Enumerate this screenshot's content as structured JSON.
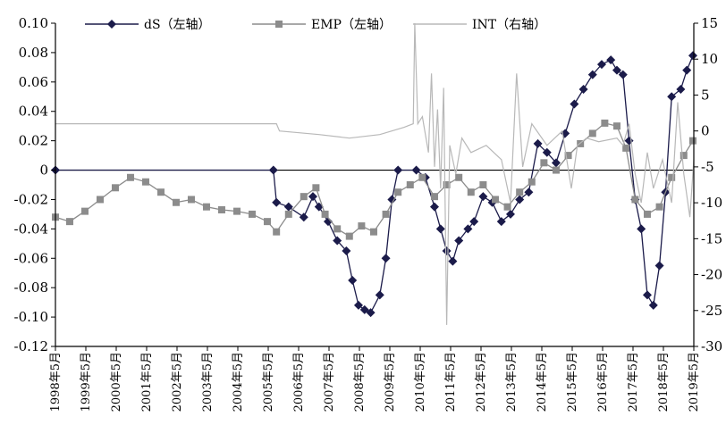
{
  "chart_data": {
    "type": "line",
    "title": "",
    "xlabel": "",
    "ylabel_left": "",
    "ylabel_right": "",
    "x_range": [
      1998.33,
      2019.33
    ],
    "left_axis": {
      "min": -0.12,
      "max": 0.1,
      "ticks": [
        0.1,
        0.08,
        0.06,
        0.04,
        0.02,
        0,
        -0.02,
        -0.04,
        -0.06,
        -0.08,
        -0.1,
        -0.12
      ],
      "tick_labels": [
        "0.10",
        "0.08",
        "0.06",
        "0.04",
        "0.02",
        "0",
        "-0.02",
        "-0.04",
        "-0.06",
        "-0.08",
        "-0.10",
        "-0.12"
      ]
    },
    "right_axis": {
      "min": -30,
      "max": 15,
      "ticks": [
        15,
        10,
        5,
        0,
        -5,
        -10,
        -15,
        -20,
        -25,
        -30
      ],
      "tick_labels": [
        "15",
        "10",
        "5",
        "0",
        "-5",
        "-10",
        "-15",
        "-20",
        "-25",
        "-30"
      ]
    },
    "x_tick_labels": [
      "1998年5月",
      "1999年5月",
      "2000年5月",
      "2001年5月",
      "2002年5月",
      "2003年5月",
      "2004年5月",
      "2005年5月",
      "2006年5月",
      "2007年5月",
      "2008年5月",
      "2009年5月",
      "2010年5月",
      "2011年5月",
      "2012年5月",
      "2013年5月",
      "2014年5月",
      "2015年5月",
      "2016年5月",
      "2017年5月",
      "2018年5月",
      "2019年5月"
    ],
    "legend_position": "top",
    "series": [
      {
        "name": "dS（左轴）",
        "axis": "left",
        "color": "#1b1b4a",
        "marker": "diamond",
        "points": [
          [
            1998.33,
            0
          ],
          [
            2005.5,
            0
          ],
          [
            2005.6,
            -0.022
          ],
          [
            2006.0,
            -0.025
          ],
          [
            2006.5,
            -0.032
          ],
          [
            2006.8,
            -0.018
          ],
          [
            2007.0,
            -0.025
          ],
          [
            2007.3,
            -0.035
          ],
          [
            2007.6,
            -0.048
          ],
          [
            2007.9,
            -0.055
          ],
          [
            2008.1,
            -0.075
          ],
          [
            2008.3,
            -0.092
          ],
          [
            2008.5,
            -0.095
          ],
          [
            2008.7,
            -0.097
          ],
          [
            2009.0,
            -0.085
          ],
          [
            2009.2,
            -0.06
          ],
          [
            2009.4,
            -0.02
          ],
          [
            2009.6,
            0
          ],
          [
            2010.2,
            0
          ],
          [
            2010.5,
            -0.005
          ],
          [
            2010.8,
            -0.025
          ],
          [
            2011.0,
            -0.04
          ],
          [
            2011.2,
            -0.055
          ],
          [
            2011.4,
            -0.062
          ],
          [
            2011.6,
            -0.048
          ],
          [
            2011.9,
            -0.04
          ],
          [
            2012.1,
            -0.035
          ],
          [
            2012.4,
            -0.018
          ],
          [
            2012.7,
            -0.022
          ],
          [
            2013.0,
            -0.035
          ],
          [
            2013.3,
            -0.03
          ],
          [
            2013.6,
            -0.02
          ],
          [
            2013.9,
            -0.015
          ],
          [
            2014.2,
            0.018
          ],
          [
            2014.5,
            0.012
          ],
          [
            2014.8,
            0.005
          ],
          [
            2015.1,
            0.025
          ],
          [
            2015.4,
            0.045
          ],
          [
            2015.7,
            0.055
          ],
          [
            2016.0,
            0.065
          ],
          [
            2016.3,
            0.072
          ],
          [
            2016.6,
            0.075
          ],
          [
            2016.8,
            0.068
          ],
          [
            2017.0,
            0.065
          ],
          [
            2017.2,
            0.02
          ],
          [
            2017.4,
            -0.02
          ],
          [
            2017.6,
            -0.04
          ],
          [
            2017.8,
            -0.085
          ],
          [
            2018.0,
            -0.092
          ],
          [
            2018.2,
            -0.065
          ],
          [
            2018.4,
            -0.015
          ],
          [
            2018.6,
            0.05
          ],
          [
            2018.9,
            0.055
          ],
          [
            2019.1,
            0.068
          ],
          [
            2019.3,
            0.078
          ]
        ]
      },
      {
        "name": "EMP（左轴）",
        "axis": "left",
        "color": "#8c8c8c",
        "marker": "square",
        "points": [
          [
            1998.33,
            -0.032
          ],
          [
            1998.8,
            -0.035
          ],
          [
            1999.3,
            -0.028
          ],
          [
            1999.8,
            -0.02
          ],
          [
            2000.3,
            -0.012
          ],
          [
            2000.8,
            -0.005
          ],
          [
            2001.3,
            -0.008
          ],
          [
            2001.8,
            -0.015
          ],
          [
            2002.3,
            -0.022
          ],
          [
            2002.8,
            -0.02
          ],
          [
            2003.3,
            -0.025
          ],
          [
            2003.8,
            -0.027
          ],
          [
            2004.3,
            -0.028
          ],
          [
            2004.8,
            -0.03
          ],
          [
            2005.3,
            -0.035
          ],
          [
            2005.6,
            -0.042
          ],
          [
            2006.0,
            -0.03
          ],
          [
            2006.5,
            -0.018
          ],
          [
            2006.9,
            -0.012
          ],
          [
            2007.2,
            -0.03
          ],
          [
            2007.6,
            -0.04
          ],
          [
            2008.0,
            -0.045
          ],
          [
            2008.4,
            -0.038
          ],
          [
            2008.8,
            -0.042
          ],
          [
            2009.2,
            -0.03
          ],
          [
            2009.6,
            -0.015
          ],
          [
            2010.0,
            -0.01
          ],
          [
            2010.4,
            -0.005
          ],
          [
            2010.8,
            -0.018
          ],
          [
            2011.2,
            -0.01
          ],
          [
            2011.6,
            -0.005
          ],
          [
            2012.0,
            -0.015
          ],
          [
            2012.4,
            -0.01
          ],
          [
            2012.8,
            -0.02
          ],
          [
            2013.2,
            -0.025
          ],
          [
            2013.6,
            -0.015
          ],
          [
            2014.0,
            -0.008
          ],
          [
            2014.4,
            0.005
          ],
          [
            2014.8,
            0
          ],
          [
            2015.2,
            0.01
          ],
          [
            2015.6,
            0.018
          ],
          [
            2016.0,
            0.025
          ],
          [
            2016.4,
            0.032
          ],
          [
            2016.8,
            0.03
          ],
          [
            2017.1,
            0.015
          ],
          [
            2017.4,
            -0.02
          ],
          [
            2017.8,
            -0.03
          ],
          [
            2018.2,
            -0.025
          ],
          [
            2018.6,
            -0.005
          ],
          [
            2019.0,
            0.01
          ],
          [
            2019.3,
            0.02
          ]
        ]
      },
      {
        "name": "INT（右轴）",
        "axis": "right",
        "color": "#b8b8b8",
        "marker": "none",
        "points": [
          [
            1998.33,
            1.0
          ],
          [
            2005.6,
            1.0
          ],
          [
            2005.7,
            0
          ],
          [
            2007.0,
            -0.5
          ],
          [
            2008.0,
            -1.0
          ],
          [
            2009.0,
            -0.5
          ],
          [
            2009.8,
            0.5
          ],
          [
            2010.1,
            1.0
          ],
          [
            2010.15,
            15.0
          ],
          [
            2010.25,
            1.0
          ],
          [
            2010.4,
            2.0
          ],
          [
            2010.6,
            -3.0
          ],
          [
            2010.7,
            8.0
          ],
          [
            2010.8,
            -5.0
          ],
          [
            2010.9,
            3.0
          ],
          [
            2011.0,
            -8.0
          ],
          [
            2011.1,
            6.0
          ],
          [
            2011.2,
            -27.0
          ],
          [
            2011.3,
            -2.0
          ],
          [
            2011.5,
            -6.0
          ],
          [
            2011.7,
            -1.0
          ],
          [
            2012.0,
            -3.0
          ],
          [
            2012.5,
            -2.0
          ],
          [
            2013.0,
            -4.0
          ],
          [
            2013.3,
            -10.0
          ],
          [
            2013.5,
            8.0
          ],
          [
            2013.7,
            -5.0
          ],
          [
            2014.0,
            1.0
          ],
          [
            2014.5,
            -2.0
          ],
          [
            2015.0,
            0
          ],
          [
            2015.3,
            -8.0
          ],
          [
            2015.5,
            -2.0
          ],
          [
            2015.8,
            -1.0
          ],
          [
            2016.2,
            -1.5
          ],
          [
            2016.8,
            -1.0
          ],
          [
            2017.0,
            -2.0
          ],
          [
            2017.2,
            1.0
          ],
          [
            2017.4,
            -6.0
          ],
          [
            2017.6,
            -10.0
          ],
          [
            2017.8,
            -3.0
          ],
          [
            2018.0,
            -8.0
          ],
          [
            2018.3,
            -4.0
          ],
          [
            2018.6,
            -10.0
          ],
          [
            2018.8,
            4.0
          ],
          [
            2019.0,
            -6.0
          ],
          [
            2019.2,
            -12.0
          ],
          [
            2019.33,
            -4.0
          ]
        ]
      }
    ]
  }
}
